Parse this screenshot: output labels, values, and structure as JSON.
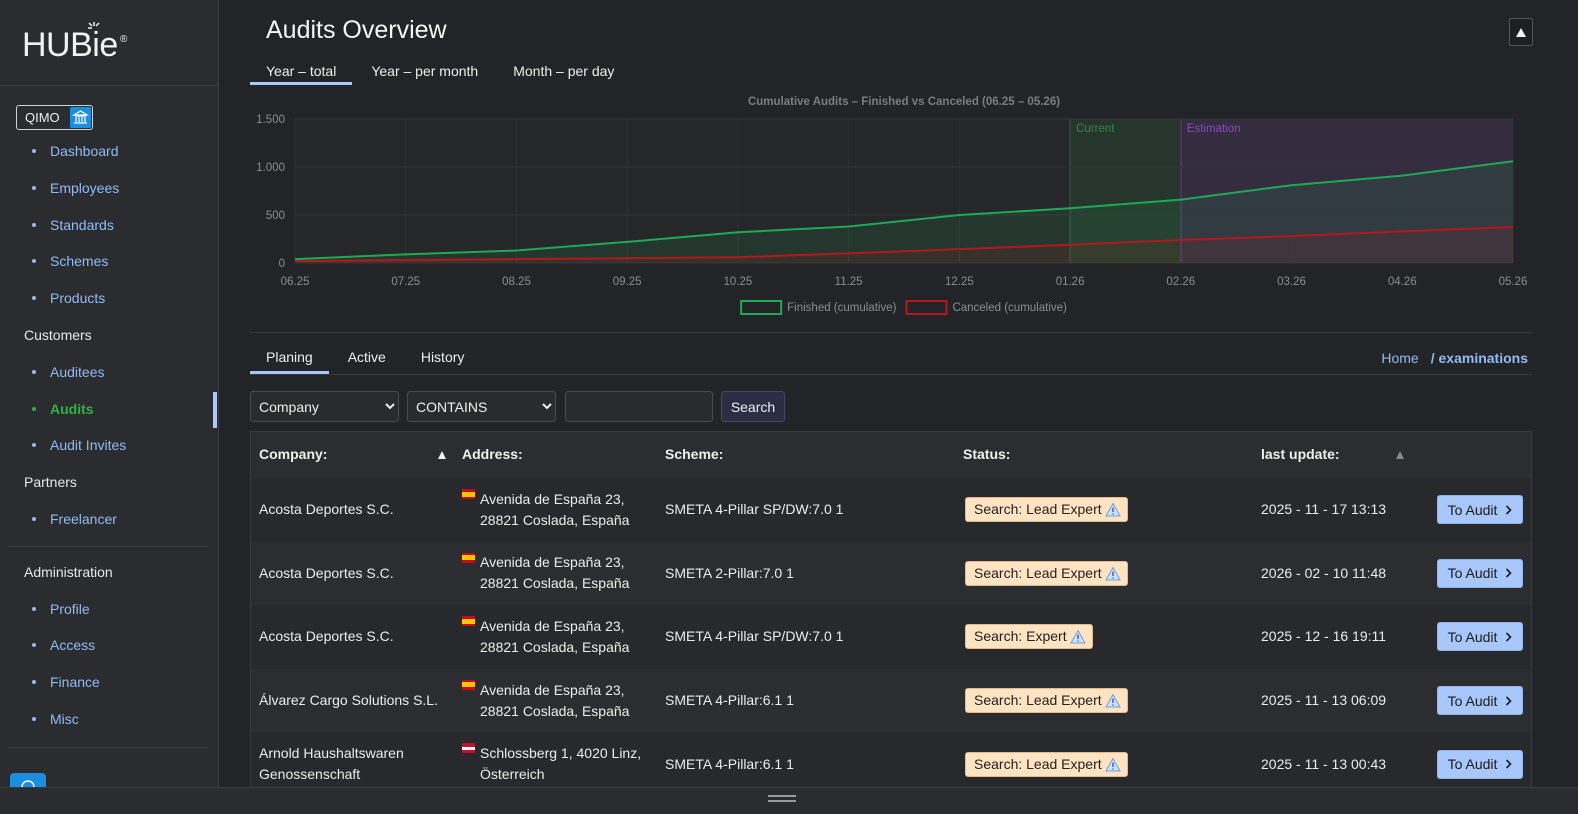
{
  "sidebar": {
    "logo": "HUBie",
    "logo_mark": "®",
    "org": "QIMO",
    "active": "Audits",
    "groups": [
      {
        "items": [
          "Dashboard",
          "Employees",
          "Standards",
          "Schemes",
          "Products"
        ]
      },
      {
        "title": "Customers",
        "items": [
          "Auditees",
          "Audits",
          "Audit Invites"
        ]
      },
      {
        "title": "Partners",
        "items": [
          "Freelancer"
        ]
      },
      {
        "title": "Administration",
        "items": [
          "Profile",
          "Access",
          "Finance",
          "Misc"
        ]
      }
    ]
  },
  "header": {
    "title": "Audits Overview"
  },
  "chart_tabs": {
    "items": [
      "Year – total",
      "Year – per month",
      "Month – per day"
    ],
    "active": "Year – total"
  },
  "chart_data": {
    "type": "line",
    "title": "Cumulative Audits – Finished vs Canceled (06.25 – 05.26)",
    "categories": [
      "06.25",
      "07.25",
      "08.25",
      "09.25",
      "10.25",
      "11.25",
      "12.25",
      "01.26",
      "02.26",
      "03.26",
      "04.26",
      "05.26"
    ],
    "series": [
      {
        "name": "Finished (cumulative)",
        "color": "#1fa855",
        "values": [
          40,
          90,
          130,
          220,
          320,
          380,
          500,
          570,
          660,
          810,
          910,
          1060
        ]
      },
      {
        "name": "Canceled (cumulative)",
        "color": "#b3191c",
        "values": [
          20,
          30,
          40,
          50,
          60,
          100,
          145,
          190,
          240,
          280,
          330,
          375
        ]
      }
    ],
    "ylim": [
      0,
      1500
    ],
    "yticks": [
      0,
      500,
      {
        "value": 1000,
        "label": "1.000"
      },
      {
        "value": 1500,
        "label": "1.500"
      }
    ],
    "grid": true,
    "fill": true,
    "legend": "bottom",
    "bands": [
      {
        "label": "Current",
        "from": "01.26",
        "to": "02.26",
        "color": "#2e8b3e"
      },
      {
        "label": "Estimation",
        "from": "02.26",
        "to": "05.26",
        "color": "#8a4bb8"
      }
    ]
  },
  "list_tabs": {
    "items": [
      "Planing",
      "Active",
      "History"
    ],
    "active": "Planing"
  },
  "breadcrumb": {
    "items": [
      "Home",
      "/ examinations"
    ]
  },
  "filters": {
    "field": "Company",
    "operator": "CONTAINS",
    "button": "Search"
  },
  "table": {
    "columns": [
      "Company:",
      "Address:",
      "Scheme:",
      "Status:",
      "last update:"
    ],
    "rows": [
      {
        "company": "Acosta Deportes S.C.",
        "flag_colors": [
          "#c60b1e",
          "#ffc400",
          "#c60b1e"
        ],
        "address": [
          "Avenida de España 23,",
          "28821 Coslada, España"
        ],
        "scheme": "SMETA 4-Pillar SP/DW:7.0 1",
        "status": "Search: Lead Expert",
        "updated": "2025 - 11 - 17 13:13",
        "action": "To Audit"
      },
      {
        "company": "Acosta Deportes S.C.",
        "flag_colors": [
          "#c60b1e",
          "#ffc400",
          "#c60b1e"
        ],
        "address": [
          "Avenida de España 23,",
          "28821 Coslada, España"
        ],
        "scheme": "SMETA 2-Pillar:7.0 1",
        "status": "Search: Lead Expert",
        "updated": "2026 - 02 - 10 11:48",
        "action": "To Audit"
      },
      {
        "company": "Acosta Deportes S.C.",
        "flag_colors": [
          "#c60b1e",
          "#ffc400",
          "#c60b1e"
        ],
        "address": [
          "Avenida de España 23,",
          "28821 Coslada, España"
        ],
        "scheme": "SMETA 4-Pillar SP/DW:7.0 1",
        "status": "Search: Expert",
        "updated": "2025 - 12 - 16 19:11",
        "action": "To Audit"
      },
      {
        "company": "Álvarez Cargo Solutions S.L.",
        "flag_colors": [
          "#c60b1e",
          "#ffc400",
          "#c60b1e"
        ],
        "address": [
          "Avenida de España 23,",
          "28821 Coslada, España"
        ],
        "scheme": "SMETA 4-Pillar:6.1 1",
        "status": "Search: Lead Expert",
        "updated": "2025 - 11 - 13 06:09",
        "action": "To Audit"
      },
      {
        "company": "Arnold Haushaltswaren Genossenschaft",
        "flag_colors": [
          "#c8102e",
          "#ffffff",
          "#c8102e"
        ],
        "address": [
          "Schlossberg 1, 4020 Linz,",
          "Österreich"
        ],
        "scheme": "SMETA 4-Pillar:6.1 1",
        "status": "Search: Lead Expert",
        "updated": "2025 - 11 - 13 00:43",
        "action": "To Audit"
      }
    ]
  }
}
